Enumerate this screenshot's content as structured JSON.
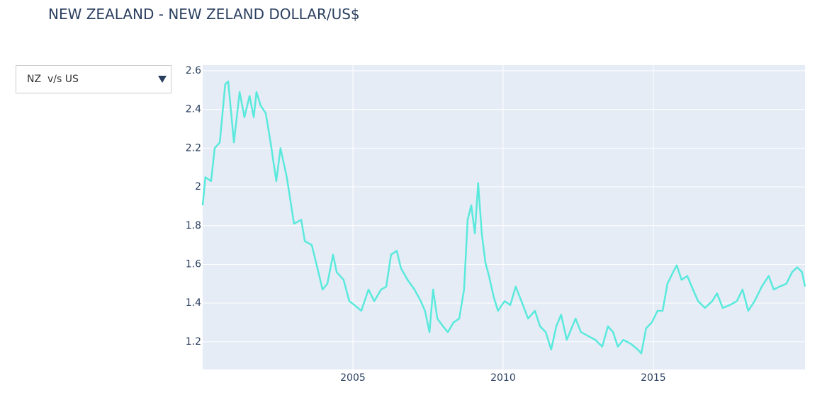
{
  "dropdown": {
    "selected": "NZ  v/s US"
  },
  "chart_data": {
    "type": "line",
    "title": "NEW ZEALAND - NEW ZELAND DOLLAR/US$",
    "color": "#5ae9dc",
    "x": [
      2000.0,
      2000.09,
      2000.28,
      2000.4,
      2000.57,
      2000.75,
      2000.85,
      2001.04,
      2001.23,
      2001.39,
      2001.56,
      2001.7,
      2001.79,
      2001.93,
      2002.1,
      2002.26,
      2002.45,
      2002.59,
      2002.8,
      2003.04,
      2003.28,
      2003.4,
      2003.63,
      2003.82,
      2003.99,
      2004.15,
      2004.34,
      2004.46,
      2004.69,
      2004.88,
      2005.05,
      2005.28,
      2005.52,
      2005.71,
      2005.94,
      2006.11,
      2006.27,
      2006.46,
      2006.6,
      2006.82,
      2007.05,
      2007.26,
      2007.4,
      2007.55,
      2007.67,
      2007.81,
      2008.0,
      2008.16,
      2008.35,
      2008.54,
      2008.7,
      2008.82,
      2008.94,
      2009.06,
      2009.17,
      2009.29,
      2009.41,
      2009.53,
      2009.69,
      2009.83,
      2010.05,
      2010.24,
      2010.42,
      2010.66,
      2010.83,
      2011.06,
      2011.23,
      2011.42,
      2011.6,
      2011.77,
      2011.93,
      2012.12,
      2012.41,
      2012.59,
      2012.83,
      2013.07,
      2013.3,
      2013.49,
      2013.66,
      2013.82,
      2014.0,
      2014.25,
      2014.48,
      2014.6,
      2014.76,
      2014.95,
      2015.14,
      2015.31,
      2015.47,
      2015.66,
      2015.78,
      2015.94,
      2016.13,
      2016.32,
      2016.49,
      2016.72,
      2016.96,
      2017.12,
      2017.31,
      2017.55,
      2017.78,
      2017.97,
      2018.16,
      2018.37,
      2018.61,
      2018.84,
      2019.01,
      2019.2,
      2019.43,
      2019.62,
      2019.79,
      2019.95,
      2020.05
    ],
    "values": [
      1.905,
      2.05,
      2.03,
      2.2,
      2.23,
      2.53,
      2.545,
      2.23,
      2.49,
      2.36,
      2.47,
      2.36,
      2.49,
      2.42,
      2.38,
      2.23,
      2.03,
      2.2,
      2.05,
      1.81,
      1.83,
      1.72,
      1.7,
      1.58,
      1.47,
      1.5,
      1.65,
      1.56,
      1.52,
      1.41,
      1.39,
      1.36,
      1.47,
      1.41,
      1.47,
      1.485,
      1.65,
      1.67,
      1.58,
      1.52,
      1.47,
      1.41,
      1.36,
      1.25,
      1.47,
      1.32,
      1.28,
      1.25,
      1.3,
      1.32,
      1.47,
      1.83,
      1.905,
      1.76,
      2.02,
      1.76,
      1.61,
      1.54,
      1.43,
      1.36,
      1.41,
      1.39,
      1.485,
      1.39,
      1.32,
      1.36,
      1.28,
      1.25,
      1.16,
      1.28,
      1.34,
      1.21,
      1.32,
      1.25,
      1.23,
      1.21,
      1.175,
      1.28,
      1.25,
      1.175,
      1.21,
      1.19,
      1.16,
      1.14,
      1.27,
      1.3,
      1.36,
      1.36,
      1.5,
      1.56,
      1.595,
      1.52,
      1.54,
      1.47,
      1.41,
      1.375,
      1.41,
      1.45,
      1.375,
      1.39,
      1.41,
      1.47,
      1.36,
      1.41,
      1.485,
      1.54,
      1.47,
      1.485,
      1.5,
      1.56,
      1.585,
      1.56,
      1.485
    ],
    "xlim": [
      2000.0,
      2020.05
    ],
    "ylim": [
      1.057,
      2.629
    ],
    "xticks": [
      2005,
      2010,
      2015
    ],
    "yticks": [
      1.2,
      1.4,
      1.6,
      1.8,
      2,
      2.2,
      2.4,
      2.6
    ],
    "grid": true
  }
}
